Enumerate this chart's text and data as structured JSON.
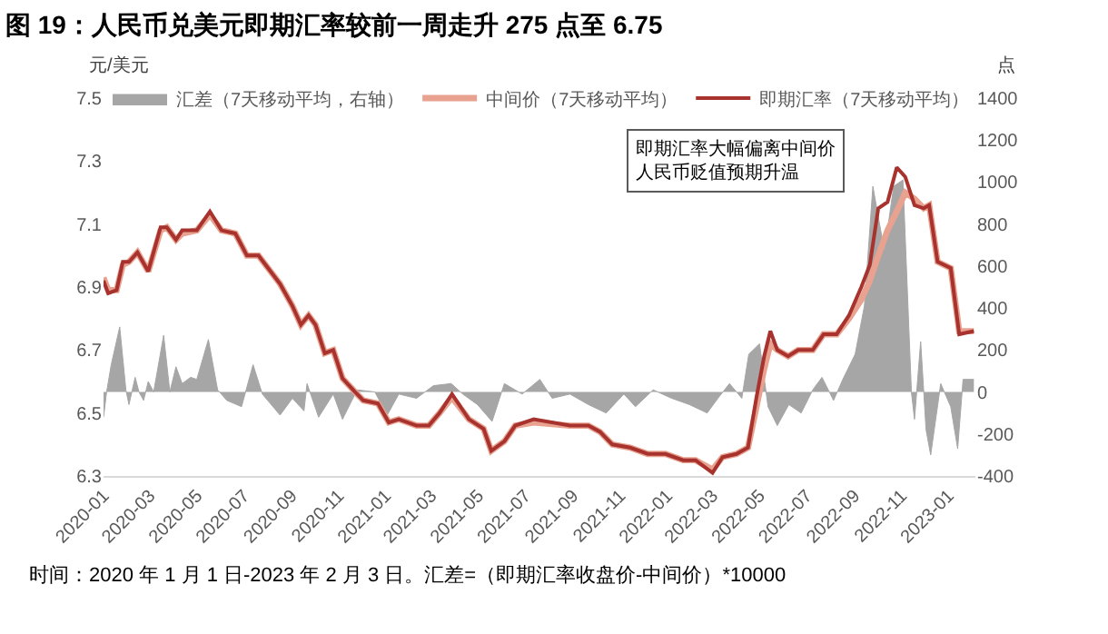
{
  "chart_data": {
    "type": "line",
    "title": "图 19：人民币兑美元即期汇率较前一周走升 275 点至 6.75",
    "ylabel": "元/美元",
    "y2label": "点",
    "annotations": [
      "即期汇率大幅偏离中间价人民币贬值预期升温",
      "时间：2020 年 1 月 1 日-2023 年 2 月 3 日。汇差=（即期汇率收盘价-中间价）*10000"
    ],
    "xlim": [
      "2020-01-01",
      "2023-02-05"
    ],
    "xticks": [
      "2020-01",
      "2020-03",
      "2020-05",
      "2020-07",
      "2020-09",
      "2020-11",
      "2021-01",
      "2021-03",
      "2021-05",
      "2021-07",
      "2021-09",
      "2021-11",
      "2022-01",
      "2022-03",
      "2022-05",
      "2022-07",
      "2022-09",
      "2022-11",
      "2023-01"
    ],
    "ylim": [
      6.3,
      7.5
    ],
    "yticks": [
      6.3,
      6.5,
      6.7,
      6.9,
      7.1,
      7.3,
      7.5
    ],
    "y2lim": [
      -400,
      1400
    ],
    "y2ticks": [
      -400,
      -200,
      0,
      200,
      400,
      600,
      800,
      1000,
      1200,
      1400
    ],
    "legend": "top",
    "marker": "none",
    "series": [
      {
        "name": "汇差（7天移动平均，右轴）",
        "type": "area",
        "axis": "y2",
        "color": "#a6a6a6",
        "x": [
          "2020-01-01",
          "2020-01-05",
          "2020-01-11",
          "2020-01-22",
          "2020-01-30",
          "2020-02-03",
          "2020-02-11",
          "2020-02-16",
          "2020-02-22",
          "2020-02-28",
          "2020-03-06",
          "2020-03-19",
          "2020-03-27",
          "2020-04-04",
          "2020-04-12",
          "2020-04-23",
          "2020-05-01",
          "2020-05-16",
          "2020-05-28",
          "2020-06-09",
          "2020-06-28",
          "2020-07-13",
          "2020-07-25",
          "2020-08-17",
          "2020-09-02",
          "2020-09-17",
          "2020-09-21",
          "2020-10-06",
          "2020-10-25",
          "2020-11-06",
          "2020-11-25",
          "2020-12-18",
          "2021-01-03",
          "2021-01-18",
          "2021-02-10",
          "2021-03-04",
          "2021-03-27",
          "2021-04-11",
          "2021-04-30",
          "2021-05-19",
          "2021-06-04",
          "2021-06-27",
          "2021-07-20",
          "2021-08-05",
          "2021-08-28",
          "2021-09-21",
          "2021-10-14",
          "2021-11-06",
          "2021-11-21",
          "2021-12-14",
          "2022-01-07",
          "2022-01-30",
          "2022-02-22",
          "2022-03-08",
          "2022-03-23",
          "2022-04-08",
          "2022-04-17",
          "2022-05-01",
          "2022-05-12",
          "2022-05-24",
          "2022-06-08",
          "2022-06-24",
          "2022-07-09",
          "2022-07-21",
          "2022-08-05",
          "2022-08-17",
          "2022-09-02",
          "2022-09-14",
          "2022-09-25",
          "2022-10-10",
          "2022-10-22",
          "2022-11-03",
          "2022-11-14",
          "2022-11-18",
          "2022-11-26",
          "2022-12-03",
          "2022-12-09",
          "2022-12-22",
          "2023-01-04",
          "2023-01-13",
          "2023-01-20",
          "2023-02-03"
        ],
        "values": [
          -120,
          0,
          130,
          310,
          10,
          -60,
          70,
          0,
          -40,
          50,
          0,
          270,
          0,
          120,
          40,
          70,
          60,
          250,
          10,
          -40,
          -70,
          130,
          -10,
          -110,
          -30,
          -90,
          40,
          -120,
          -10,
          -130,
          10,
          0,
          -110,
          -10,
          -30,
          30,
          40,
          -10,
          -60,
          -140,
          40,
          -10,
          60,
          -30,
          -10,
          -60,
          -100,
          -10,
          -70,
          10,
          -30,
          -60,
          -100,
          -30,
          40,
          -30,
          180,
          230,
          -70,
          -160,
          -60,
          -100,
          10,
          70,
          -40,
          60,
          180,
          410,
          980,
          670,
          980,
          1010,
          0,
          -130,
          240,
          -180,
          -300,
          40,
          -70,
          -270,
          60,
          60
        ]
      },
      {
        "name": "中间价（7天移动平均）",
        "color": "#e8a28f",
        "x": [
          "2020-01-01",
          "2020-01-07",
          "2020-01-18",
          "2020-01-26",
          "2020-02-03",
          "2020-02-14",
          "2020-02-28",
          "2020-03-15",
          "2020-03-23",
          "2020-04-04",
          "2020-04-12",
          "2020-05-01",
          "2020-05-18",
          "2020-06-02",
          "2020-06-20",
          "2020-07-05",
          "2020-07-20",
          "2020-08-17",
          "2020-09-02",
          "2020-09-13",
          "2020-09-23",
          "2020-10-02",
          "2020-10-14",
          "2020-10-25",
          "2020-11-06",
          "2020-11-21",
          "2020-12-03",
          "2020-12-22",
          "2021-01-05",
          "2021-01-18",
          "2021-02-10",
          "2021-02-26",
          "2021-03-12",
          "2021-03-28",
          "2021-04-19",
          "2021-05-08",
          "2021-05-18",
          "2021-06-04",
          "2021-06-18",
          "2021-07-12",
          "2021-08-28",
          "2021-09-21",
          "2021-10-06",
          "2021-10-22",
          "2021-11-14",
          "2021-12-07",
          "2021-12-30",
          "2022-01-22",
          "2022-02-07",
          "2022-03-01",
          "2022-03-14",
          "2022-04-01",
          "2022-04-16",
          "2022-04-27",
          "2022-05-07",
          "2022-05-15",
          "2022-05-24",
          "2022-06-07",
          "2022-06-20",
          "2022-07-09",
          "2022-07-23",
          "2022-08-09",
          "2022-08-25",
          "2022-09-10",
          "2022-09-21",
          "2022-10-02",
          "2022-10-14",
          "2022-10-26",
          "2022-11-06",
          "2022-11-18",
          "2022-11-30",
          "2022-12-07",
          "2022-12-18",
          "2023-01-04",
          "2023-01-15",
          "2023-02-03"
        ],
        "values": [
          6.93,
          6.89,
          6.89,
          6.97,
          6.98,
          7.01,
          6.95,
          7.08,
          7.09,
          7.05,
          7.07,
          7.08,
          7.13,
          7.08,
          7.07,
          7.0,
          7.0,
          6.91,
          6.84,
          6.78,
          6.81,
          6.78,
          6.69,
          6.7,
          6.61,
          6.57,
          6.54,
          6.53,
          6.47,
          6.48,
          6.46,
          6.46,
          6.5,
          6.55,
          6.48,
          6.45,
          6.38,
          6.41,
          6.46,
          6.47,
          6.46,
          6.46,
          6.44,
          6.4,
          6.39,
          6.37,
          6.37,
          6.35,
          6.35,
          6.32,
          6.36,
          6.37,
          6.39,
          6.52,
          6.64,
          6.72,
          6.7,
          6.68,
          6.7,
          6.7,
          6.75,
          6.75,
          6.8,
          6.86,
          6.92,
          7.0,
          7.08,
          7.14,
          7.2,
          7.18,
          7.15,
          7.16,
          6.98,
          6.96,
          6.76,
          6.76
        ]
      },
      {
        "name": "即期汇率（7天移动平均）",
        "color": "#a8322d",
        "x": [
          "2020-01-01",
          "2020-01-07",
          "2020-01-18",
          "2020-01-26",
          "2020-02-03",
          "2020-02-14",
          "2020-02-28",
          "2020-03-15",
          "2020-03-23",
          "2020-04-04",
          "2020-04-12",
          "2020-05-01",
          "2020-05-18",
          "2020-06-02",
          "2020-06-20",
          "2020-07-05",
          "2020-07-20",
          "2020-08-17",
          "2020-09-02",
          "2020-09-13",
          "2020-09-23",
          "2020-10-02",
          "2020-10-14",
          "2020-10-25",
          "2020-11-06",
          "2020-11-21",
          "2020-12-03",
          "2020-12-22",
          "2021-01-05",
          "2021-01-18",
          "2021-02-10",
          "2021-02-26",
          "2021-03-12",
          "2021-03-28",
          "2021-04-19",
          "2021-05-08",
          "2021-05-18",
          "2021-06-04",
          "2021-06-18",
          "2021-07-12",
          "2021-08-28",
          "2021-09-21",
          "2021-10-06",
          "2021-10-22",
          "2021-11-14",
          "2021-12-07",
          "2021-12-30",
          "2022-01-22",
          "2022-02-07",
          "2022-03-01",
          "2022-03-14",
          "2022-04-01",
          "2022-04-16",
          "2022-04-27",
          "2022-05-07",
          "2022-05-15",
          "2022-05-24",
          "2022-06-07",
          "2022-06-20",
          "2022-07-09",
          "2022-07-23",
          "2022-08-09",
          "2022-08-25",
          "2022-09-10",
          "2022-09-21",
          "2022-10-02",
          "2022-10-14",
          "2022-10-26",
          "2022-11-06",
          "2022-11-18",
          "2022-11-30",
          "2022-12-07",
          "2022-12-18",
          "2023-01-04",
          "2023-01-15",
          "2023-02-03"
        ],
        "values": [
          6.92,
          6.88,
          6.89,
          6.98,
          6.98,
          7.01,
          6.95,
          7.09,
          7.09,
          7.05,
          7.08,
          7.08,
          7.14,
          7.08,
          7.07,
          7.0,
          7.0,
          6.91,
          6.84,
          6.78,
          6.81,
          6.78,
          6.69,
          6.7,
          6.61,
          6.57,
          6.54,
          6.53,
          6.47,
          6.48,
          6.46,
          6.46,
          6.5,
          6.56,
          6.48,
          6.45,
          6.38,
          6.41,
          6.46,
          6.48,
          6.46,
          6.46,
          6.44,
          6.4,
          6.39,
          6.37,
          6.37,
          6.35,
          6.35,
          6.31,
          6.36,
          6.37,
          6.39,
          6.55,
          6.68,
          6.76,
          6.7,
          6.68,
          6.7,
          6.7,
          6.75,
          6.75,
          6.81,
          6.9,
          6.97,
          7.15,
          7.17,
          7.28,
          7.25,
          7.16,
          7.15,
          7.16,
          6.98,
          6.96,
          6.75,
          6.76
        ]
      }
    ]
  }
}
